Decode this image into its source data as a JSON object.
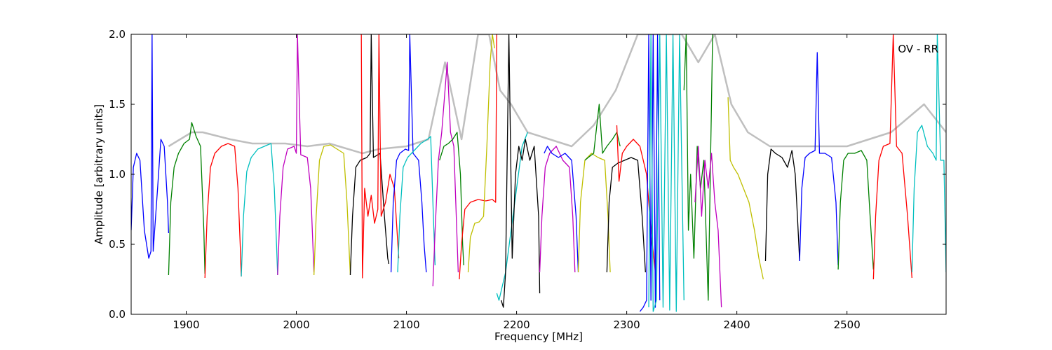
{
  "chart_data": {
    "type": "line",
    "xlabel": "Frequency [MHz]",
    "ylabel": "Amplitude [arbitrary units]",
    "annotation": "OV - RR",
    "xlim": [
      1850,
      2590
    ],
    "ylim": [
      0,
      2
    ],
    "xticks": [
      1900,
      2000,
      2100,
      2200,
      2300,
      2400,
      2500
    ],
    "yticks": [
      {
        "value": 0,
        "label": "0.0"
      },
      {
        "value": 0.5,
        "label": "0.5"
      },
      {
        "value": 1,
        "label": "1.0"
      },
      {
        "value": 1.5,
        "label": "1.5"
      },
      {
        "value": 2,
        "label": "2.0"
      }
    ],
    "grid": false,
    "series": [
      {
        "color": "#bfbfbf",
        "x": [
          1884,
          1905,
          1915,
          1940,
          1960,
          1990,
          2010,
          2030,
          2060,
          2075,
          2100,
          2120,
          2135,
          2150,
          2165,
          2175,
          2185,
          2195,
          2210,
          2230,
          2250,
          2270,
          2290,
          2310,
          2330,
          2350,
          2365,
          2380,
          2395,
          2410,
          2430,
          2460,
          2500,
          2540,
          2570,
          2590
        ],
        "values": [
          1.2,
          1.3,
          1.3,
          1.25,
          1.22,
          1.22,
          1.2,
          1.22,
          1.15,
          1.18,
          1.2,
          1.25,
          1.8,
          1.25,
          2.0,
          2.0,
          1.6,
          1.5,
          1.3,
          1.25,
          1.2,
          1.35,
          1.6,
          2.0,
          2.0,
          2.0,
          1.8,
          2.0,
          1.5,
          1.3,
          1.2,
          1.2,
          1.2,
          1.3,
          1.5,
          1.3
        ]
      },
      {
        "color": "#0000ff",
        "x": [
          1850,
          1852,
          1855,
          1858,
          1862,
          1866,
          1868,
          1869,
          1870,
          1874,
          1877,
          1880,
          1883,
          1884
        ],
        "values": [
          0.6,
          1.05,
          1.15,
          1.1,
          0.6,
          0.4,
          0.45,
          2.0,
          0.45,
          0.9,
          1.25,
          1.2,
          0.8,
          0.58
        ]
      },
      {
        "color": "#008000",
        "x": [
          1884,
          1886,
          1889,
          1893,
          1898,
          1903,
          1905,
          1909,
          1913,
          1916,
          1917
        ],
        "values": [
          0.28,
          0.8,
          1.05,
          1.15,
          1.22,
          1.25,
          1.37,
          1.27,
          1.2,
          0.6,
          0.29
        ]
      },
      {
        "color": "#ff0000",
        "x": [
          1917,
          1919,
          1922,
          1926,
          1932,
          1938,
          1944,
          1947,
          1949,
          1950
        ],
        "values": [
          0.26,
          0.7,
          1.05,
          1.15,
          1.2,
          1.22,
          1.2,
          0.9,
          0.5,
          0.27
        ]
      },
      {
        "color": "#00bfbf",
        "x": [
          1950,
          1952,
          1955,
          1959,
          1965,
          1971,
          1977,
          1980,
          1982,
          1983
        ],
        "values": [
          0.27,
          0.7,
          1.02,
          1.12,
          1.18,
          1.2,
          1.22,
          0.9,
          0.5,
          0.28
        ]
      },
      {
        "color": "#bf00bf",
        "x": [
          1983,
          1985,
          1988,
          1992,
          1998,
          2000,
          2001,
          2004,
          2010,
          2013,
          2015,
          2016
        ],
        "values": [
          0.28,
          0.7,
          1.05,
          1.18,
          1.2,
          1.15,
          2.0,
          1.14,
          1.12,
          0.9,
          0.5,
          0.3
        ]
      },
      {
        "color": "#bfbf00",
        "x": [
          2016,
          2018,
          2021,
          2025,
          2031,
          2037,
          2043,
          2046,
          2048,
          2049
        ],
        "values": [
          0.28,
          0.7,
          1.1,
          1.2,
          1.21,
          1.18,
          1.15,
          0.8,
          0.45,
          0.28
        ]
      },
      {
        "color": "#000000",
        "x": [
          2049,
          2051,
          2054,
          2058,
          2064,
          2067,
          2068,
          2070,
          2076,
          2080,
          2083,
          2084
        ],
        "values": [
          0.28,
          0.7,
          1.05,
          1.1,
          1.12,
          1.15,
          2.0,
          1.12,
          1.15,
          0.7,
          0.4,
          0.36
        ]
      },
      {
        "color": "#ff0000",
        "x": [
          2059,
          2060,
          2062,
          2065,
          2068,
          2071,
          2074,
          2075,
          2077,
          2081,
          2085,
          2089,
          2093
        ],
        "values": [
          2.0,
          0.26,
          0.9,
          0.7,
          0.85,
          0.65,
          0.75,
          2.0,
          0.7,
          0.8,
          1.0,
          0.9,
          0.4
        ]
      },
      {
        "color": "#0000ff",
        "x": [
          2086,
          2088,
          2091,
          2094,
          2099,
          2102,
          2103,
          2106,
          2111,
          2114,
          2116,
          2118
        ],
        "values": [
          0.3,
          0.8,
          1.1,
          1.15,
          1.18,
          1.17,
          2.0,
          1.15,
          1.1,
          0.8,
          0.5,
          0.3
        ]
      },
      {
        "color": "#00bfbf",
        "x": [
          2092,
          2094,
          2097,
          2101,
          2107,
          2113,
          2119,
          2122,
          2124,
          2126
        ],
        "values": [
          0.3,
          0.7,
          1.05,
          1.12,
          1.17,
          1.22,
          1.25,
          1.27,
          0.8,
          0.35
        ]
      },
      {
        "color": "#bf00bf",
        "x": [
          2124,
          2126,
          2129,
          2132,
          2134,
          2137,
          2140,
          2143,
          2147
        ],
        "values": [
          0.2,
          0.6,
          1.1,
          1.3,
          1.5,
          1.8,
          1.3,
          1.2,
          0.3
        ]
      },
      {
        "color": "#008000",
        "x": [
          2130,
          2134,
          2138,
          2142,
          2146,
          2149,
          2151,
          2152
        ],
        "values": [
          1.1,
          1.2,
          1.22,
          1.25,
          1.3,
          1.0,
          0.5,
          0.35
        ]
      },
      {
        "color": "#ff0000",
        "x": [
          2148,
          2150,
          2153,
          2158,
          2165,
          2172,
          2178,
          2181,
          2182
        ],
        "values": [
          0.25,
          0.5,
          0.75,
          0.8,
          0.82,
          0.81,
          0.82,
          0.8,
          2.0
        ]
      },
      {
        "color": "#bfbf00",
        "x": [
          2156,
          2158,
          2162,
          2166,
          2170,
          2173,
          2176,
          2178,
          2180
        ],
        "values": [
          0.3,
          0.55,
          0.65,
          0.66,
          0.7,
          1.2,
          1.8,
          2.0,
          1.9
        ]
      },
      {
        "color": "#00bfbf",
        "x": [
          2182,
          2184,
          2187,
          2190,
          2195,
          2200,
          2205,
          2210
        ],
        "values": [
          0.15,
          0.1,
          0.2,
          0.3,
          0.6,
          0.9,
          1.2,
          1.3
        ]
      },
      {
        "color": "#000000",
        "x": [
          2186,
          2188,
          2190,
          2193,
          2196,
          2199,
          2202,
          2205,
          2208,
          2212,
          2216,
          2220,
          2221
        ],
        "values": [
          0.1,
          0.05,
          0.3,
          2.0,
          0.4,
          1.0,
          1.2,
          1.1,
          1.25,
          1.1,
          1.2,
          0.7,
          0.15
        ]
      },
      {
        "color": "#bf00bf",
        "x": [
          2221,
          2223,
          2226,
          2230,
          2236,
          2242,
          2248,
          2251,
          2253
        ],
        "values": [
          0.3,
          0.7,
          1.05,
          1.15,
          1.2,
          1.1,
          1.05,
          0.7,
          0.3
        ]
      },
      {
        "color": "#0000ff",
        "x": [
          2225,
          2228,
          2232,
          2238,
          2244,
          2250,
          2254,
          2256
        ],
        "values": [
          1.15,
          1.2,
          1.15,
          1.12,
          1.15,
          1.1,
          0.7,
          0.3
        ]
      },
      {
        "color": "#bfbf00",
        "x": [
          2256,
          2258,
          2262,
          2268,
          2274,
          2280,
          2283,
          2285
        ],
        "values": [
          0.3,
          0.8,
          1.1,
          1.15,
          1.12,
          1.1,
          0.7,
          0.3
        ]
      },
      {
        "color": "#008000",
        "x": [
          2262,
          2265,
          2270,
          2275,
          2278,
          2282,
          2287,
          2291,
          2294
        ],
        "values": [
          1.1,
          1.12,
          1.15,
          1.5,
          1.15,
          1.2,
          1.25,
          1.3,
          1.2
        ]
      },
      {
        "color": "#000000",
        "x": [
          2282,
          2284,
          2287,
          2292,
          2298,
          2304,
          2310,
          2314,
          2317
        ],
        "values": [
          0.3,
          0.8,
          1.05,
          1.08,
          1.1,
          1.12,
          1.1,
          0.7,
          0.3
        ]
      },
      {
        "color": "#ff0000",
        "x": [
          2291,
          2293,
          2296,
          2300,
          2306,
          2312,
          2318,
          2322,
          2326
        ],
        "values": [
          1.35,
          0.95,
          1.15,
          1.2,
          1.25,
          1.2,
          1.0,
          0.6,
          0.3
        ]
      },
      {
        "color": "#0000ff",
        "x": [
          2312,
          2315,
          2318,
          2320,
          2322,
          2324,
          2326,
          2328,
          2330
        ],
        "values": [
          0.02,
          0.05,
          0.1,
          2.0,
          0.1,
          2.0,
          0.05,
          2.0,
          0.1
        ]
      },
      {
        "color": "#00bfbf",
        "x": [
          2320,
          2322,
          2324,
          2327,
          2330,
          2333,
          2336,
          2339,
          2342,
          2345,
          2348,
          2352
        ],
        "values": [
          0.05,
          2.0,
          0.02,
          0.1,
          2.0,
          0.05,
          2.0,
          0.03,
          2.0,
          0.02,
          2.0,
          0.1
        ]
      },
      {
        "color": "#008000",
        "x": [
          2352,
          2354,
          2356,
          2358,
          2361,
          2364,
          2367,
          2370,
          2374,
          2378
        ],
        "values": [
          1.6,
          2.0,
          0.6,
          1.0,
          0.4,
          1.2,
          0.9,
          1.1,
          0.1,
          2.0
        ]
      },
      {
        "color": "#bf00bf",
        "x": [
          2362,
          2365,
          2368,
          2371,
          2374,
          2377,
          2380,
          2383,
          2386
        ],
        "values": [
          0.8,
          1.2,
          0.7,
          1.1,
          0.9,
          1.15,
          0.8,
          0.6,
          0.05
        ]
      },
      {
        "color": "#bfbf00",
        "x": [
          2392,
          2394,
          2397,
          2401,
          2406,
          2411,
          2416,
          2420,
          2424
        ],
        "values": [
          1.55,
          1.1,
          1.05,
          1.0,
          0.9,
          0.8,
          0.6,
          0.4,
          0.25
        ]
      },
      {
        "color": "#000000",
        "x": [
          2426,
          2428,
          2431,
          2435,
          2441,
          2446,
          2450,
          2453,
          2455,
          2457
        ],
        "values": [
          0.38,
          1.0,
          1.18,
          1.15,
          1.12,
          1.05,
          1.17,
          1.0,
          0.7,
          0.38
        ]
      },
      {
        "color": "#0000ff",
        "x": [
          2457,
          2459,
          2462,
          2466,
          2471,
          2473,
          2475,
          2480,
          2486,
          2490,
          2492
        ],
        "values": [
          0.38,
          0.9,
          1.12,
          1.15,
          1.17,
          1.87,
          1.15,
          1.15,
          1.12,
          0.8,
          0.35
        ]
      },
      {
        "color": "#008000",
        "x": [
          2492,
          2494,
          2497,
          2501,
          2507,
          2513,
          2518,
          2521,
          2524
        ],
        "values": [
          0.32,
          0.8,
          1.1,
          1.15,
          1.15,
          1.17,
          1.1,
          0.7,
          0.32
        ]
      },
      {
        "color": "#ff0000",
        "x": [
          2524,
          2526,
          2529,
          2533,
          2539,
          2542,
          2545,
          2550,
          2555,
          2559
        ],
        "values": [
          0.25,
          0.7,
          1.1,
          1.2,
          1.22,
          2.0,
          1.2,
          1.15,
          0.7,
          0.26
        ]
      },
      {
        "color": "#00bfbf",
        "x": [
          2559,
          2561,
          2564,
          2568,
          2573,
          2578,
          2581,
          2582,
          2585,
          2588,
          2590
        ],
        "values": [
          0.3,
          0.9,
          1.3,
          1.35,
          1.2,
          1.15,
          1.1,
          2.0,
          1.1,
          1.1,
          0.3
        ]
      }
    ]
  }
}
